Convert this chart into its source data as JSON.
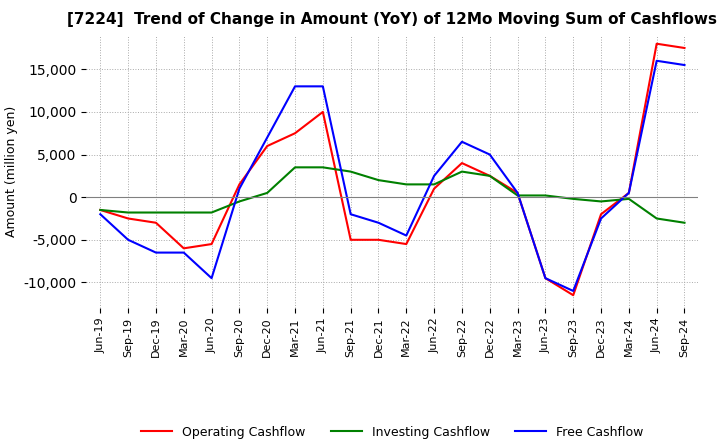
{
  "title": "[7224]  Trend of Change in Amount (YoY) of 12Mo Moving Sum of Cashflows",
  "ylabel": "Amount (million yen)",
  "x_labels": [
    "Jun-19",
    "Sep-19",
    "Dec-19",
    "Mar-20",
    "Jun-20",
    "Sep-20",
    "Dec-20",
    "Mar-21",
    "Jun-21",
    "Sep-21",
    "Dec-21",
    "Mar-22",
    "Jun-22",
    "Sep-22",
    "Dec-22",
    "Mar-23",
    "Jun-23",
    "Sep-23",
    "Dec-23",
    "Mar-24",
    "Jun-24",
    "Sep-24"
  ],
  "operating_cashflow": [
    -1500,
    -2500,
    -3000,
    -6000,
    -5500,
    1500,
    6000,
    7500,
    10000,
    -5000,
    -5000,
    -5500,
    1000,
    4000,
    2500,
    500,
    -9500,
    -11500,
    -2000,
    500,
    18000,
    17500
  ],
  "investing_cashflow": [
    -1500,
    -1800,
    -1800,
    -1800,
    -1800,
    -500,
    500,
    3500,
    3500,
    3000,
    2000,
    1500,
    1500,
    3000,
    2500,
    200,
    200,
    -200,
    -500,
    -200,
    -2500,
    -3000
  ],
  "free_cashflow": [
    -2000,
    -5000,
    -6500,
    -6500,
    -9500,
    1000,
    7000,
    13000,
    13000,
    -2000,
    -3000,
    -4500,
    2500,
    6500,
    5000,
    500,
    -9500,
    -11000,
    -2500,
    500,
    16000,
    15500
  ],
  "operating_color": "#ff0000",
  "investing_color": "#008000",
  "free_color": "#0000ff",
  "ylim": [
    -13000,
    19000
  ],
  "yticks": [
    -10000,
    -5000,
    0,
    5000,
    10000,
    15000
  ],
  "background_color": "#ffffff",
  "grid_color": "#aaaaaa"
}
